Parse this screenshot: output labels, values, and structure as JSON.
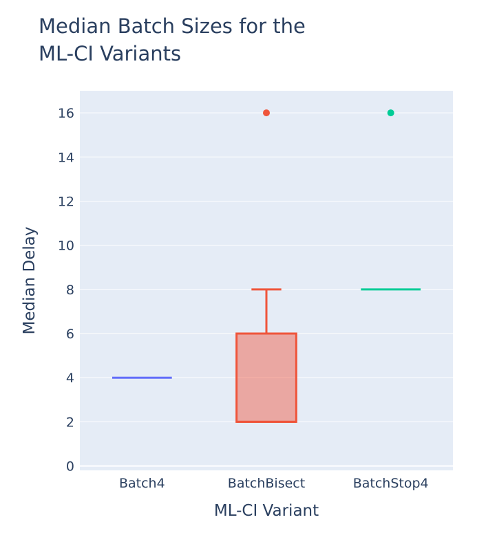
{
  "chart_data": {
    "type": "box",
    "title_lines": [
      "Median Batch Sizes for the",
      "ML-CI Variants"
    ],
    "xlabel": "ML-CI Variant",
    "ylabel": "Median Delay",
    "ylim": [
      -0.2,
      17
    ],
    "yticks": [
      0,
      2,
      4,
      6,
      8,
      10,
      12,
      14,
      16
    ],
    "ytick_labels": [
      "0",
      "2",
      "4",
      "6",
      "8",
      "10",
      "12",
      "14",
      "16"
    ],
    "grid": true,
    "legend": "none",
    "categories": [
      "Batch4",
      "BatchBisect",
      "BatchStop4"
    ],
    "series": [
      {
        "category": "Batch4",
        "min": 4,
        "q1": 4,
        "median": 4,
        "q3": 4,
        "max": 4,
        "outliers": [],
        "color": "#636efa"
      },
      {
        "category": "BatchBisect",
        "min": 2,
        "q1": 2,
        "median": 2,
        "q3": 6,
        "max": 8,
        "outliers": [
          16
        ],
        "color": "#ef553b"
      },
      {
        "category": "BatchStop4",
        "min": 8,
        "q1": 8,
        "median": 8,
        "q3": 8,
        "max": 8,
        "outliers": [
          16
        ],
        "color": "#00cc96"
      }
    ]
  },
  "colors": {
    "plot_background": "#e5ecf6",
    "grid": "#ffffff",
    "text": "#2a3f5f"
  }
}
